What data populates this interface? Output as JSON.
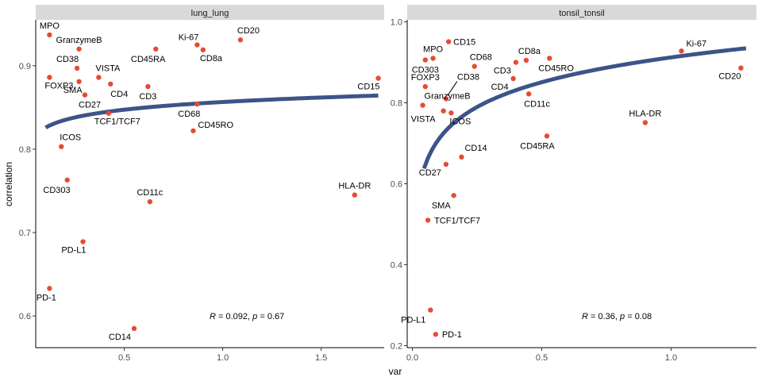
{
  "chart_data": {
    "type": "scatter",
    "xlabel": "var",
    "ylabel": "correlation",
    "point_color": "#e64b35",
    "line_color": "#3c5488",
    "strip_color": "#d9d9d9",
    "panels": [
      {
        "title": "lung_lung",
        "xlim": [
          0.05,
          1.82
        ],
        "ylim": [
          0.562,
          0.955
        ],
        "xticks": [
          0.5,
          1.0,
          1.5
        ],
        "xtick_labels": [
          "0.5",
          "1.0",
          "1.5"
        ],
        "yticks": [
          0.6,
          0.7,
          0.8,
          0.9
        ],
        "ytick_labels": [
          "0.6",
          "0.7",
          "0.8",
          "0.9"
        ],
        "fit": {
          "type": "log",
          "x_from": 0.1,
          "x_to": 1.79,
          "a": 0.8565,
          "b": 0.0133
        },
        "stat": {
          "R": "0.092",
          "p": "0.67"
        },
        "points": [
          {
            "label": "MPO",
            "x": 0.12,
            "y": 0.937,
            "anchor": "middle",
            "dy": -8
          },
          {
            "label": "GranzymeB",
            "x": 0.27,
            "y": 0.92,
            "anchor": "middle",
            "dy": -8
          },
          {
            "label": "CD38",
            "x": 0.26,
            "y": 0.897,
            "anchor": "end",
            "dx": 2,
            "dy": -8
          },
          {
            "label": "VISTA",
            "x": 0.37,
            "y": 0.886,
            "anchor": "start",
            "dx": -4,
            "dy": -8
          },
          {
            "label": "FOXP3",
            "x": 0.12,
            "y": 0.886,
            "anchor": "start",
            "dx": -6,
            "dy": 14
          },
          {
            "label": "SMA",
            "x": 0.27,
            "y": 0.881,
            "anchor": "end",
            "dx": 4,
            "dy": 14
          },
          {
            "label": "CD4",
            "x": 0.43,
            "y": 0.878,
            "anchor": "start",
            "dx": 0,
            "dy": 16
          },
          {
            "label": "CD27",
            "x": 0.3,
            "y": 0.865,
            "anchor": "start",
            "dx": -8,
            "dy": 16
          },
          {
            "label": "CD3",
            "x": 0.62,
            "y": 0.875,
            "anchor": "middle",
            "dy": 16
          },
          {
            "label": "CD45RA",
            "x": 0.66,
            "y": 0.92,
            "anchor": "end",
            "dx": 12,
            "dy": 16
          },
          {
            "label": "Ki-67",
            "x": 0.87,
            "y": 0.925,
            "anchor": "end",
            "dx": 2,
            "dy": -6
          },
          {
            "label": "CD8a",
            "x": 0.9,
            "y": 0.919,
            "anchor": "start",
            "dx": -4,
            "dy": 14
          },
          {
            "label": "CD20",
            "x": 1.09,
            "y": 0.931,
            "anchor": "middle",
            "dx": 10,
            "dy": -8
          },
          {
            "label": "CD15",
            "x": 1.79,
            "y": 0.885,
            "anchor": "end",
            "dx": 2,
            "dy": 14
          },
          {
            "label": "CD68",
            "x": 0.87,
            "y": 0.854,
            "anchor": "end",
            "dx": 4,
            "dy": 16
          },
          {
            "label": "TCF1/TCF7",
            "x": 0.42,
            "y": 0.843,
            "anchor": "start",
            "dx": -18,
            "dy": 14
          },
          {
            "label": "CD45RO",
            "x": 0.85,
            "y": 0.822,
            "anchor": "start",
            "dx": 6,
            "dy": -4
          },
          {
            "label": "ICOS",
            "x": 0.18,
            "y": 0.803,
            "anchor": "start",
            "dx": -2,
            "dy": -8
          },
          {
            "label": "CD303",
            "x": 0.21,
            "y": 0.763,
            "anchor": "end",
            "dx": 4,
            "dy": 16
          },
          {
            "label": "CD11c",
            "x": 0.63,
            "y": 0.737,
            "anchor": "middle",
            "dy": -8
          },
          {
            "label": "HLA-DR",
            "x": 1.67,
            "y": 0.745,
            "anchor": "middle",
            "dy": -8
          },
          {
            "label": "PD-L1",
            "x": 0.29,
            "y": 0.689,
            "anchor": "end",
            "dx": 4,
            "dy": 14
          },
          {
            "label": "PD-1",
            "x": 0.12,
            "y": 0.633,
            "anchor": "middle",
            "dx": -4,
            "dy": 15
          },
          {
            "label": "CD14",
            "x": 0.55,
            "y": 0.585,
            "anchor": "end",
            "dx": -4,
            "dy": 14
          }
        ]
      },
      {
        "title": "tonsil_tonsil",
        "xlim": [
          -0.02,
          1.33
        ],
        "ylim": [
          0.195,
          1.005
        ],
        "xticks": [
          0.0,
          0.5,
          1.0
        ],
        "xtick_labels": [
          "0.0",
          "0.5",
          "1.0"
        ],
        "yticks": [
          0.2,
          0.4,
          0.6,
          0.8,
          1.0
        ],
        "ytick_labels": [
          "0.2",
          "0.4",
          "0.6",
          "0.8",
          "1.0"
        ],
        "fit": {
          "type": "log",
          "x_from": 0.045,
          "x_to": 1.29,
          "a": 0.9122,
          "b": 0.0885
        },
        "stat": {
          "R": "0.36",
          "p": "0.08"
        },
        "points": [
          {
            "label": "CD15",
            "x": 0.14,
            "y": 0.951,
            "anchor": "start",
            "dx": 6,
            "dy": 4
          },
          {
            "label": "MPO",
            "x": 0.08,
            "y": 0.91,
            "anchor": "middle",
            "dy": -8
          },
          {
            "label": "CD303",
            "x": 0.05,
            "y": 0.906,
            "anchor": "middle",
            "dx": 0,
            "dy": 16
          },
          {
            "label": "CD68",
            "x": 0.24,
            "y": 0.89,
            "anchor": "start",
            "dx": -6,
            "dy": -8
          },
          {
            "label": "CD8a",
            "x": 0.44,
            "y": 0.905,
            "anchor": "start",
            "dx": -10,
            "dy": -8
          },
          {
            "label": "CD3",
            "x": 0.4,
            "y": 0.9,
            "anchor": "end",
            "dx": -6,
            "dy": 14
          },
          {
            "label": "CD45RO",
            "x": 0.53,
            "y": 0.91,
            "anchor": "start",
            "dx": -14,
            "dy": 16
          },
          {
            "label": "Ki-67",
            "x": 1.04,
            "y": 0.928,
            "anchor": "start",
            "dx": 6,
            "dy": -6
          },
          {
            "label": "CD20",
            "x": 1.27,
            "y": 0.886,
            "anchor": "end",
            "dx": 0,
            "dy": 14
          },
          {
            "label": "FOXP3",
            "x": 0.05,
            "y": 0.84,
            "anchor": "middle",
            "dx": 0,
            "dy": -8
          },
          {
            "label": "CD4",
            "x": 0.39,
            "y": 0.86,
            "anchor": "end",
            "dx": -6,
            "dy": 14
          },
          {
            "label": "CD38",
            "x": 0.13,
            "y": 0.81,
            "anchor": "start",
            "dx": 14,
            "dy": -24
          },
          {
            "label": "GranzymeB",
            "x": 0.04,
            "y": 0.794,
            "anchor": "start",
            "dx": 2,
            "dy": -8
          },
          {
            "label": "CD11c",
            "x": 0.45,
            "y": 0.822,
            "anchor": "start",
            "dx": -6,
            "dy": 16
          },
          {
            "label": "VISTA",
            "x": 0.12,
            "y": 0.78,
            "anchor": "end",
            "dx": -10,
            "dy": 14
          },
          {
            "label": "ICOS",
            "x": 0.15,
            "y": 0.775,
            "anchor": "start",
            "dx": -2,
            "dy": 14
          },
          {
            "label": "HLA-DR",
            "x": 0.9,
            "y": 0.751,
            "anchor": "middle",
            "dy": -8
          },
          {
            "label": "CD45RA",
            "x": 0.52,
            "y": 0.718,
            "anchor": "middle",
            "dx": -12,
            "dy": 16
          },
          {
            "label": "CD14",
            "x": 0.19,
            "y": 0.666,
            "anchor": "start",
            "dx": 4,
            "dy": -8
          },
          {
            "label": "CD27",
            "x": 0.13,
            "y": 0.648,
            "anchor": "end",
            "dx": -6,
            "dy": 14
          },
          {
            "label": "SMA",
            "x": 0.16,
            "y": 0.571,
            "anchor": "end",
            "dx": -4,
            "dy": 16
          },
          {
            "label": "TCF1/TCF7",
            "x": 0.06,
            "y": 0.51,
            "anchor": "start",
            "dx": 8,
            "dy": 4
          },
          {
            "label": "PD-L1",
            "x": 0.07,
            "y": 0.288,
            "anchor": "end",
            "dx": -6,
            "dy": 16
          },
          {
            "label": "PD-1",
            "x": 0.09,
            "y": 0.228,
            "anchor": "start",
            "dx": 8,
            "dy": 4
          }
        ]
      }
    ]
  }
}
